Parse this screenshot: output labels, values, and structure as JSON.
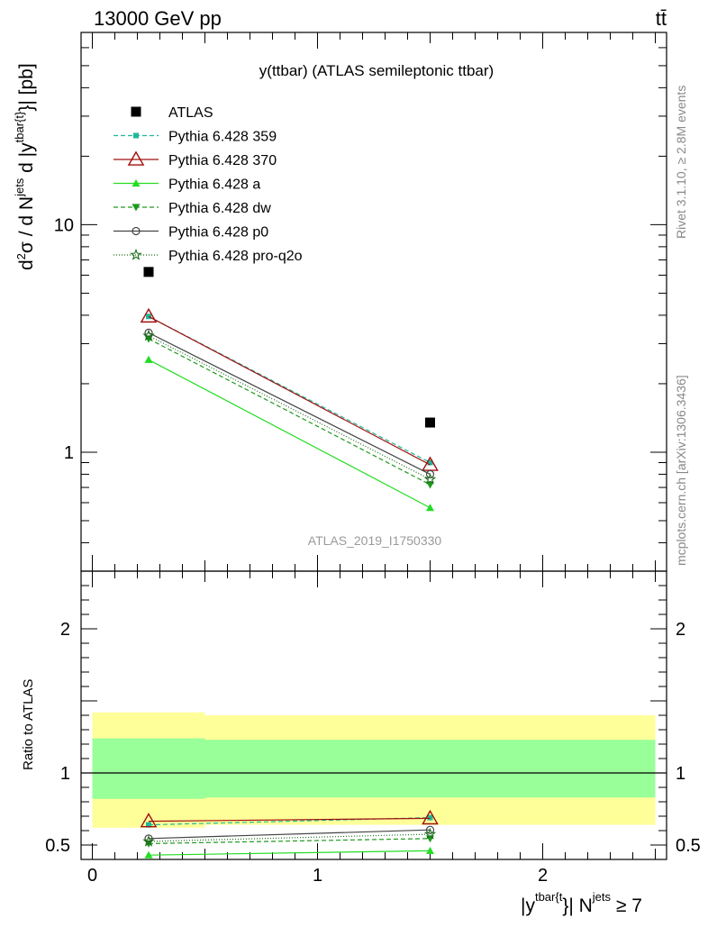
{
  "header": {
    "left": "13000 GeV pp",
    "right": "tt̄"
  },
  "side_labels": {
    "rivet": "Rivet 3.1.10, ≥ 2.8M events",
    "mcplots": "mcplots.cern.ch [arXiv:1306.3436]"
  },
  "chart_data": [
    {
      "type": "line",
      "title": "y(ttbar) (ATLAS semileptonic ttbar)",
      "watermark": "ATLAS_2019_I1750330",
      "ylabel": "d²σ / d N^jets d |y^tbar{t}| [pb]",
      "yscale": "log",
      "ylim": [
        0.3,
        70
      ],
      "xlim": [
        -0.05,
        2.55
      ],
      "ytick_labels": [
        "1",
        "10"
      ],
      "legend_position": "top-left",
      "reference": {
        "name": "ATLAS",
        "color": "#000000",
        "x": [
          0.25,
          1.5
        ],
        "y": [
          6.2,
          1.35
        ]
      },
      "series": [
        {
          "name": "Pythia 6.428 359",
          "color": "#1fb89a",
          "dash": "5,3",
          "marker": "square-small",
          "x": [
            0.25,
            1.5
          ],
          "y": [
            3.95,
            0.9
          ]
        },
        {
          "name": "Pythia 6.428 370",
          "color": "#a01010",
          "dash": "",
          "marker": "triangle-open",
          "x": [
            0.25,
            1.5
          ],
          "y": [
            3.95,
            0.88
          ]
        },
        {
          "name": "Pythia 6.428 a",
          "color": "#22dd22",
          "dash": "",
          "marker": "triangle-filled",
          "x": [
            0.25,
            1.5
          ],
          "y": [
            2.55,
            0.57
          ]
        },
        {
          "name": "Pythia 6.428 dw",
          "color": "#1d9a1d",
          "dash": "5,3",
          "marker": "triangle-down-filled",
          "x": [
            0.25,
            1.5
          ],
          "y": [
            3.15,
            0.72
          ]
        },
        {
          "name": "Pythia 6.428 p0",
          "color": "#444444",
          "dash": "",
          "marker": "circle-open",
          "x": [
            0.25,
            1.5
          ],
          "y": [
            3.35,
            0.8
          ]
        },
        {
          "name": "Pythia 6.428 pro-q2o",
          "color": "#1a6e1a",
          "dash": "1,2",
          "marker": "star-open",
          "x": [
            0.25,
            1.5
          ],
          "y": [
            3.25,
            0.76
          ]
        }
      ]
    },
    {
      "type": "line",
      "ylabel": "Ratio to ATLAS",
      "xlabel": "|y^tbar{t}| N^jets ≥ 7",
      "xlim": [
        -0.05,
        2.55
      ],
      "ylim": [
        0.4,
        2.4
      ],
      "xtick_labels": [
        "0",
        "1",
        "2"
      ],
      "ytick_labels": [
        "0.5",
        "1",
        "2"
      ],
      "bands": [
        {
          "x": [
            0.0,
            0.5
          ],
          "yellow": [
            0.62,
            1.42
          ],
          "green": [
            0.82,
            1.24
          ]
        },
        {
          "x": [
            0.5,
            2.5
          ],
          "yellow": [
            0.64,
            1.4
          ],
          "green": [
            0.83,
            1.23
          ]
        }
      ],
      "series": [
        {
          "name": "Pythia 6.428 359",
          "x": [
            0.25,
            1.5
          ],
          "y": [
            0.64,
            0.69
          ]
        },
        {
          "name": "Pythia 6.428 370",
          "x": [
            0.25,
            1.5
          ],
          "y": [
            0.665,
            0.685
          ]
        },
        {
          "name": "Pythia 6.428 a",
          "x": [
            0.25,
            1.5
          ],
          "y": [
            0.43,
            0.46
          ]
        },
        {
          "name": "Pythia 6.428 dw",
          "x": [
            0.25,
            1.5
          ],
          "y": [
            0.51,
            0.545
          ]
        },
        {
          "name": "Pythia 6.428 p0",
          "x": [
            0.25,
            1.5
          ],
          "y": [
            0.545,
            0.605
          ]
        },
        {
          "name": "Pythia 6.428 pro-q2o",
          "x": [
            0.25,
            1.5
          ],
          "y": [
            0.525,
            0.575
          ]
        }
      ]
    }
  ]
}
